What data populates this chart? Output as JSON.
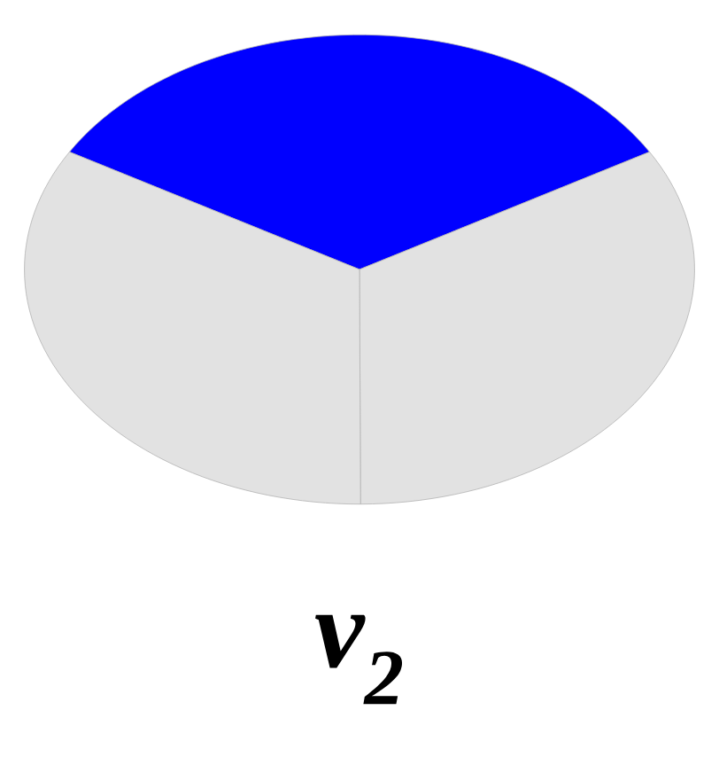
{
  "chart_data": {
    "type": "pie",
    "title": "ν$_{2}$",
    "categories": [
      null,
      null,
      null
    ],
    "values": [
      33.3,
      33.3,
      33.4
    ],
    "colors": [
      "#0000ff",
      "#e2e2e2",
      "#e2e2e2"
    ]
  }
}
